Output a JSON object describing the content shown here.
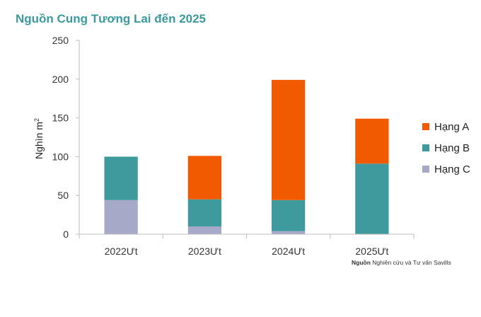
{
  "chart_data": {
    "type": "bar",
    "stacked": true,
    "title": "Nguồn Cung Tương Lai đến 2025",
    "ylabel": "Nghìn m",
    "ylabel_superscript": "2",
    "xlabel": "",
    "categories": [
      "2022Ưt",
      "2023Ưt",
      "2024Ưt",
      "2025Ưt"
    ],
    "ylim": [
      0,
      250
    ],
    "yticks": [
      0,
      50,
      100,
      150,
      200,
      250
    ],
    "series": [
      {
        "name": "Hạng C",
        "color": "#a7a9c8",
        "values": [
          44,
          10,
          4,
          0
        ]
      },
      {
        "name": "Hạng B",
        "color": "#3f9a9d",
        "values": [
          56,
          35,
          40,
          91
        ]
      },
      {
        "name": "Hạng A",
        "color": "#f25a00",
        "values": [
          0,
          56,
          155,
          58
        ]
      }
    ],
    "legend": {
      "position": "right",
      "order": [
        "Hạng A",
        "Hạng B",
        "Hạng C"
      ]
    },
    "grid": false
  },
  "source": {
    "label": "Nguồn",
    "text": "Nghiên cứu và Tư vấn Savills"
  }
}
